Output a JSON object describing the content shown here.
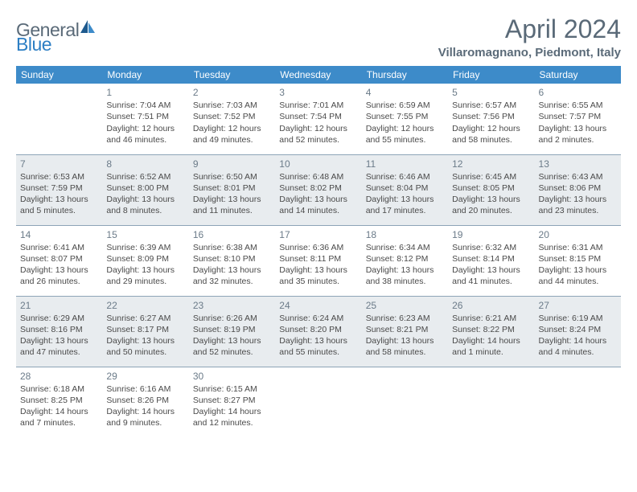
{
  "logo": {
    "general": "General",
    "blue": "Blue"
  },
  "title": "April 2024",
  "location": "Villaromagnano, Piedmont, Italy",
  "colors": {
    "header_bg": "#3d8bc9",
    "header_text": "#ffffff",
    "alt_row": "#e8ecef",
    "border": "#8da4b7",
    "title_color": "#5a6a78",
    "logo_blue": "#2d7fc4"
  },
  "weekdays": [
    "Sunday",
    "Monday",
    "Tuesday",
    "Wednesday",
    "Thursday",
    "Friday",
    "Saturday"
  ],
  "days": {
    "1": {
      "sr": "7:04 AM",
      "ss": "7:51 PM",
      "dl": "12 hours and 46 minutes."
    },
    "2": {
      "sr": "7:03 AM",
      "ss": "7:52 PM",
      "dl": "12 hours and 49 minutes."
    },
    "3": {
      "sr": "7:01 AM",
      "ss": "7:54 PM",
      "dl": "12 hours and 52 minutes."
    },
    "4": {
      "sr": "6:59 AM",
      "ss": "7:55 PM",
      "dl": "12 hours and 55 minutes."
    },
    "5": {
      "sr": "6:57 AM",
      "ss": "7:56 PM",
      "dl": "12 hours and 58 minutes."
    },
    "6": {
      "sr": "6:55 AM",
      "ss": "7:57 PM",
      "dl": "13 hours and 2 minutes."
    },
    "7": {
      "sr": "6:53 AM",
      "ss": "7:59 PM",
      "dl": "13 hours and 5 minutes."
    },
    "8": {
      "sr": "6:52 AM",
      "ss": "8:00 PM",
      "dl": "13 hours and 8 minutes."
    },
    "9": {
      "sr": "6:50 AM",
      "ss": "8:01 PM",
      "dl": "13 hours and 11 minutes."
    },
    "10": {
      "sr": "6:48 AM",
      "ss": "8:02 PM",
      "dl": "13 hours and 14 minutes."
    },
    "11": {
      "sr": "6:46 AM",
      "ss": "8:04 PM",
      "dl": "13 hours and 17 minutes."
    },
    "12": {
      "sr": "6:45 AM",
      "ss": "8:05 PM",
      "dl": "13 hours and 20 minutes."
    },
    "13": {
      "sr": "6:43 AM",
      "ss": "8:06 PM",
      "dl": "13 hours and 23 minutes."
    },
    "14": {
      "sr": "6:41 AM",
      "ss": "8:07 PM",
      "dl": "13 hours and 26 minutes."
    },
    "15": {
      "sr": "6:39 AM",
      "ss": "8:09 PM",
      "dl": "13 hours and 29 minutes."
    },
    "16": {
      "sr": "6:38 AM",
      "ss": "8:10 PM",
      "dl": "13 hours and 32 minutes."
    },
    "17": {
      "sr": "6:36 AM",
      "ss": "8:11 PM",
      "dl": "13 hours and 35 minutes."
    },
    "18": {
      "sr": "6:34 AM",
      "ss": "8:12 PM",
      "dl": "13 hours and 38 minutes."
    },
    "19": {
      "sr": "6:32 AM",
      "ss": "8:14 PM",
      "dl": "13 hours and 41 minutes."
    },
    "20": {
      "sr": "6:31 AM",
      "ss": "8:15 PM",
      "dl": "13 hours and 44 minutes."
    },
    "21": {
      "sr": "6:29 AM",
      "ss": "8:16 PM",
      "dl": "13 hours and 47 minutes."
    },
    "22": {
      "sr": "6:27 AM",
      "ss": "8:17 PM",
      "dl": "13 hours and 50 minutes."
    },
    "23": {
      "sr": "6:26 AM",
      "ss": "8:19 PM",
      "dl": "13 hours and 52 minutes."
    },
    "24": {
      "sr": "6:24 AM",
      "ss": "8:20 PM",
      "dl": "13 hours and 55 minutes."
    },
    "25": {
      "sr": "6:23 AM",
      "ss": "8:21 PM",
      "dl": "13 hours and 58 minutes."
    },
    "26": {
      "sr": "6:21 AM",
      "ss": "8:22 PM",
      "dl": "14 hours and 1 minute."
    },
    "27": {
      "sr": "6:19 AM",
      "ss": "8:24 PM",
      "dl": "14 hours and 4 minutes."
    },
    "28": {
      "sr": "6:18 AM",
      "ss": "8:25 PM",
      "dl": "14 hours and 7 minutes."
    },
    "29": {
      "sr": "6:16 AM",
      "ss": "8:26 PM",
      "dl": "14 hours and 9 minutes."
    },
    "30": {
      "sr": "6:15 AM",
      "ss": "8:27 PM",
      "dl": "14 hours and 12 minutes."
    }
  },
  "labels": {
    "sunrise": "Sunrise:",
    "sunset": "Sunset:",
    "daylight": "Daylight:"
  },
  "grid": [
    [
      null,
      1,
      2,
      3,
      4,
      5,
      6
    ],
    [
      7,
      8,
      9,
      10,
      11,
      12,
      13
    ],
    [
      14,
      15,
      16,
      17,
      18,
      19,
      20
    ],
    [
      21,
      22,
      23,
      24,
      25,
      26,
      27
    ],
    [
      28,
      29,
      30,
      null,
      null,
      null,
      null
    ]
  ]
}
